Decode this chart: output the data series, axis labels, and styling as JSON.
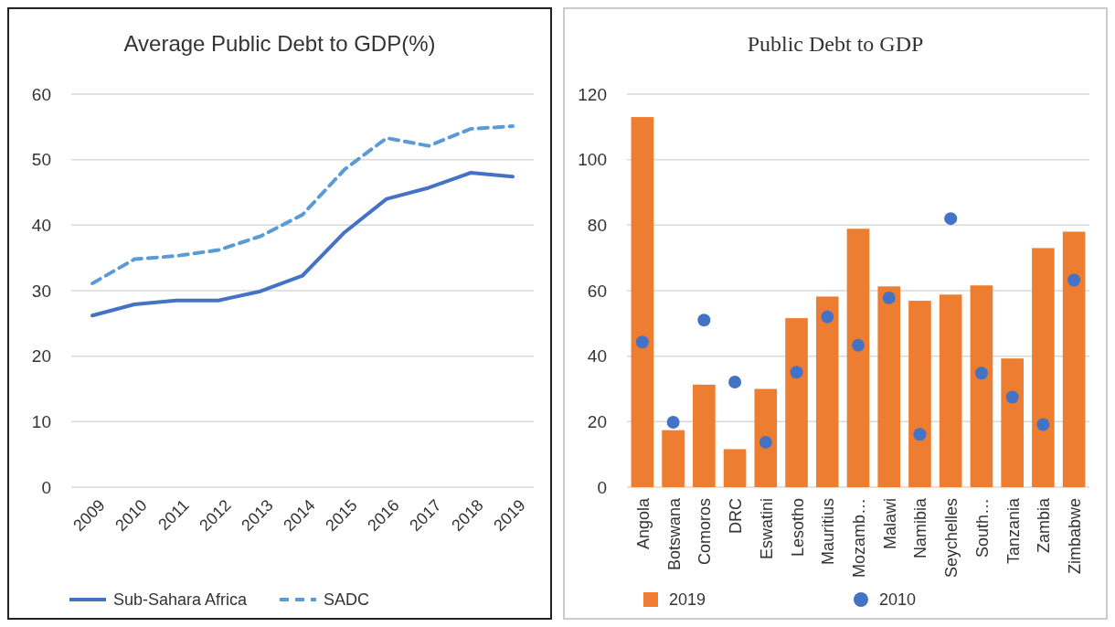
{
  "chart_data": [
    {
      "type": "line",
      "title": "Average Public Debt to GDP(%)",
      "categories": [
        "2009",
        "2010",
        "2011",
        "2012",
        "2013",
        "2014",
        "2015",
        "2016",
        "2017",
        "2018",
        "2019"
      ],
      "ylim": [
        0,
        60
      ],
      "yticks": [
        0,
        10,
        20,
        30,
        40,
        50,
        60
      ],
      "grid": "y",
      "legend": "bottom",
      "series": [
        {
          "name": "Sub-Sahara Africa",
          "color": "#4472c4",
          "line_style": "solid",
          "values": [
            26.2,
            27.9,
            28.5,
            28.5,
            29.9,
            32.3,
            38.9,
            44.0,
            45.7,
            48.0,
            47.4
          ]
        },
        {
          "name": "SADC",
          "color": "#5b9bd5",
          "line_style": "dashed",
          "values": [
            31.1,
            34.8,
            35.3,
            36.2,
            38.3,
            41.6,
            48.5,
            53.3,
            52.1,
            54.7,
            55.1
          ]
        }
      ]
    },
    {
      "type": "bar",
      "title": "Public Debt to GDP",
      "categories": [
        "Angola",
        "Botswana",
        "Comoros",
        "DRC",
        "Eswatini",
        "Lesotho",
        "Mauritius",
        "Mozamb…",
        "Malawi",
        "Namibia",
        "Seychelles",
        "South…",
        "Tanzania",
        "Zambia",
        "Zimbabwe"
      ],
      "ylim": [
        0,
        120
      ],
      "yticks": [
        0,
        20,
        40,
        60,
        80,
        100,
        120
      ],
      "grid": "y",
      "legend": "bottom",
      "series": [
        {
          "name": "2019",
          "color": "#ed7d31",
          "values": [
            113.0,
            17.4,
            31.3,
            11.6,
            30.0,
            51.6,
            58.2,
            78.9,
            61.3,
            56.9,
            58.8,
            61.6,
            39.3,
            73.0,
            78.0
          ]
        },
        {
          "name": "2010",
          "type": "scatter",
          "marker": "circle",
          "color": "#4472c4",
          "values": [
            44.3,
            19.8,
            51.0,
            32.1,
            13.7,
            35.1,
            52.0,
            43.3,
            57.8,
            16.1,
            82.0,
            34.8,
            27.5,
            19.1,
            63.2
          ]
        }
      ]
    }
  ]
}
